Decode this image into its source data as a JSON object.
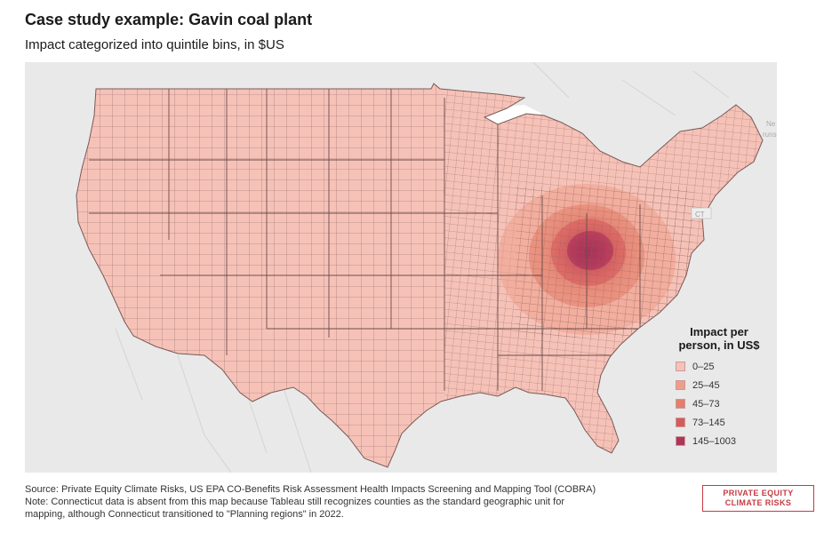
{
  "title": "Case study example: Gavin coal plant",
  "subtitle": "Impact categorized into quintile bins, in $US",
  "legend": {
    "title_line1": "Impact per",
    "title_line2": "person, in US$",
    "bins": [
      {
        "label": "0–25",
        "color": "#f6c2b8"
      },
      {
        "label": "25–45",
        "color": "#ee9e89"
      },
      {
        "label": "45–73",
        "color": "#e47f6c"
      },
      {
        "label": "73–145",
        "color": "#d55a5a"
      },
      {
        "label": "145–1003",
        "color": "#b0345a"
      }
    ]
  },
  "basemap_labels": {
    "ct": "CT",
    "ne": "Ne",
    "bru": "runs"
  },
  "colors": {
    "base_fill": "#f6c2b8",
    "county_line": "#7a5a56",
    "land_bg": "#e9e9e9",
    "water": "#ffffff"
  },
  "source": "Source: Private Equity Climate Risks, US EPA CO-Benefits Risk Assessment Health Impacts Screening and Mapping Tool (COBRA)",
  "note_line1": "Note: Connecticut data is absent from this map because Tableau still recognizes counties as the standard geographic unit for",
  "note_line2": "mapping, although Connecticut transitioned to \"Planning regions\" in 2022.",
  "logo": {
    "line1": "PRIVATE EQUITY",
    "line2": "CLIMATE RISKS"
  }
}
